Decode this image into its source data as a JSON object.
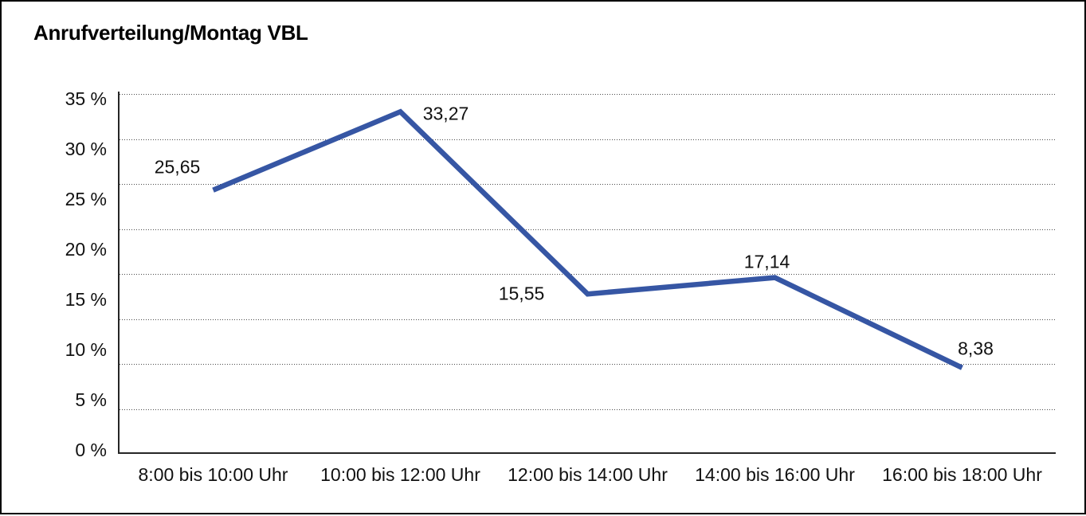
{
  "window": {
    "background": "#ffffff",
    "border_color": "#000000"
  },
  "chart_data": {
    "type": "line",
    "title": "Anrufverteilung/Montag VBL",
    "categories": [
      "8:00 bis 10:00 Uhr",
      "10:00 bis 12:00 Uhr",
      "12:00 bis 14:00 Uhr",
      "14:00 bis 16:00 Uhr",
      "16:00 bis 18:00 Uhr"
    ],
    "values": [
      25.65,
      33.27,
      15.55,
      17.14,
      8.38
    ],
    "value_labels": [
      "25,65",
      "33,27",
      "15,55",
      "17,14",
      "8,38"
    ],
    "y_tick_labels": [
      "35 %",
      "30 %",
      "25 %",
      "20 %",
      "15 %",
      "10 %",
      "5 %",
      "0 %"
    ],
    "ylim": [
      0,
      35
    ],
    "ytick_step": 5,
    "xlabel": "",
    "ylabel": "",
    "grid": "horizontal-dotted",
    "legend": "none",
    "line_color": "#3656A4",
    "grid_color": "#4a4a4a",
    "axis_color": "#262626",
    "text_color": "#111111"
  }
}
